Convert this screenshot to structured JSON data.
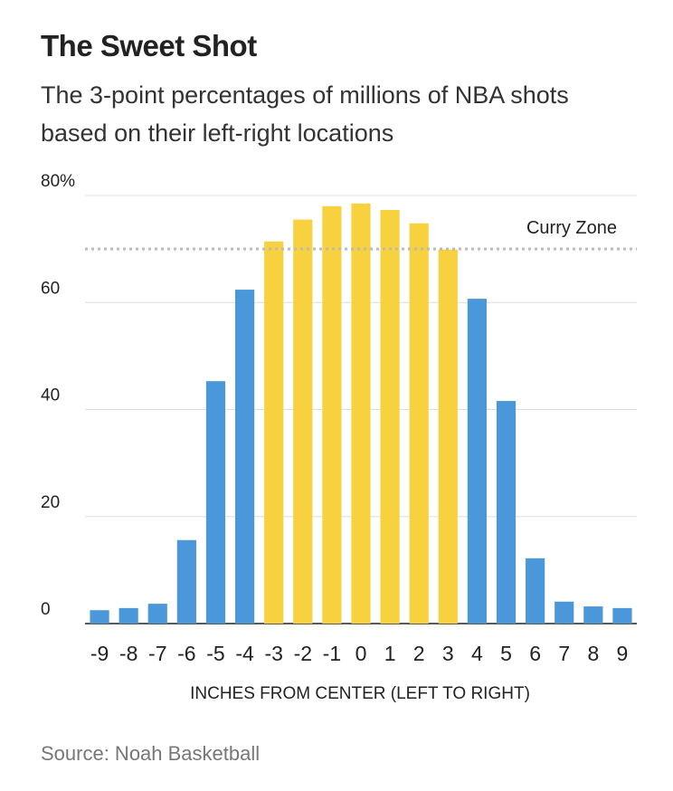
{
  "chart_data": {
    "type": "bar",
    "title": "The Sweet Shot",
    "subtitle": "The 3-point percentages of millions of NBA shots based on their left-right locations",
    "x_label": "INCHES FROM CENTER (LEFT TO RIGHT)",
    "source": "Source: Noah Basketball",
    "categories": [
      -9,
      -8,
      -7,
      -6,
      -5,
      -4,
      -3,
      -2,
      -1,
      0,
      1,
      2,
      3,
      4,
      5,
      6,
      7,
      8,
      9
    ],
    "values": [
      2.5,
      2.9,
      3.7,
      15.6,
      45.3,
      62.4,
      71.4,
      75.5,
      78,
      78.5,
      77.3,
      74.8,
      69.9,
      60.7,
      41.6,
      12.2,
      4.1,
      3.2,
      2.9
    ],
    "colors": [
      "#4a98d9",
      "#4a98d9",
      "#4a98d9",
      "#4a98d9",
      "#4a98d9",
      "#4a98d9",
      "#f7d23e",
      "#f7d23e",
      "#f7d23e",
      "#f7d23e",
      "#f7d23e",
      "#f7d23e",
      "#f7d23e",
      "#4a98d9",
      "#4a98d9",
      "#4a98d9",
      "#4a98d9",
      "#4a98d9",
      "#4a98d9"
    ],
    "reference_line": {
      "value": 70,
      "label": "Curry Zone"
    },
    "ylim": [
      0,
      80
    ],
    "yticks": [
      0,
      20,
      40,
      60,
      {
        "value": 80,
        "label": "80%"
      }
    ],
    "grid": true
  }
}
